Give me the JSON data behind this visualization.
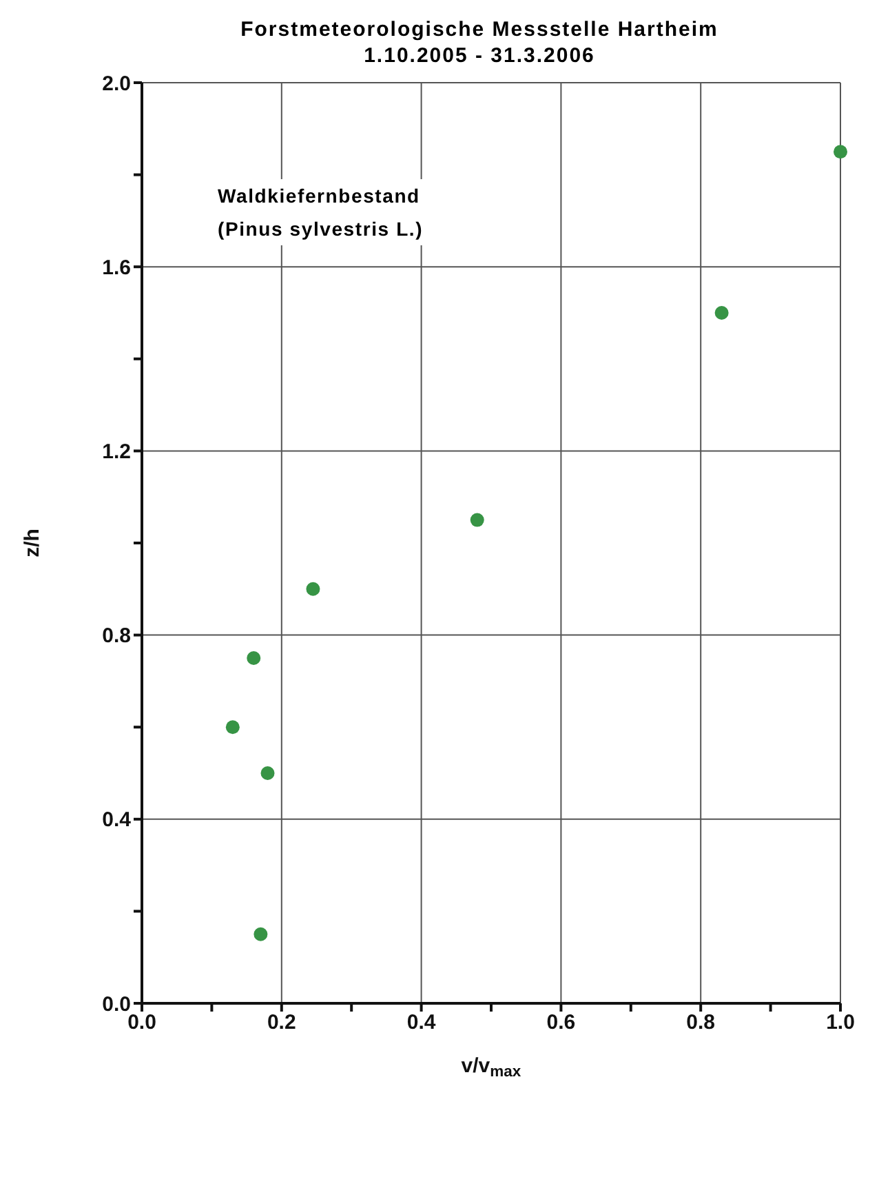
{
  "chart_data": {
    "type": "scatter",
    "title": "Forstmeteorologische Messstelle Hartheim",
    "subtitle": "1.10.2005 - 31.3.2006",
    "xlabel": "v/v$_{max}$",
    "ylabel": "z/h",
    "annotations": [
      "Waldkiefernbestand",
      "(Pinus sylvestris L.)"
    ],
    "x": [
      0.17,
      0.18,
      0.13,
      0.16,
      0.245,
      0.48,
      0.83,
      1.0
    ],
    "series": [
      {
        "color": "#379445",
        "values": [
          0.15,
          0.5,
          0.6,
          0.75,
          0.9,
          1.05,
          1.5,
          1.85
        ]
      }
    ],
    "marker": "circle",
    "grid": true,
    "xlim": [
      0,
      1
    ],
    "xticks": [
      {
        "value": 0,
        "label": "0.0"
      },
      {
        "value": 0.1,
        "label": null
      },
      {
        "value": 0.2,
        "label": "0.2"
      },
      {
        "value": 0.3,
        "label": null
      },
      {
        "value": 0.4,
        "label": "0.4"
      },
      {
        "value": 0.5,
        "label": null
      },
      {
        "value": 0.6,
        "label": "0.6"
      },
      {
        "value": 0.7,
        "label": null
      },
      {
        "value": 0.8,
        "label": "0.8"
      },
      {
        "value": 0.9,
        "label": null
      },
      {
        "value": 1,
        "label": "1.0"
      }
    ],
    "ylim": [
      0,
      2
    ],
    "yticks": [
      {
        "value": 0,
        "label": "0.0"
      },
      {
        "value": 0.2,
        "label": null
      },
      {
        "value": 0.4,
        "label": "0.4"
      },
      {
        "value": 0.6,
        "label": null
      },
      {
        "value": 0.8,
        "label": "0.8"
      },
      {
        "value": 1,
        "label": null
      },
      {
        "value": 1.2,
        "label": "1.2"
      },
      {
        "value": 1.4,
        "label": null
      },
      {
        "value": 1.6,
        "label": "1.6"
      },
      {
        "value": 1.8,
        "label": null
      },
      {
        "value": 2,
        "label": "2.0"
      }
    ]
  }
}
